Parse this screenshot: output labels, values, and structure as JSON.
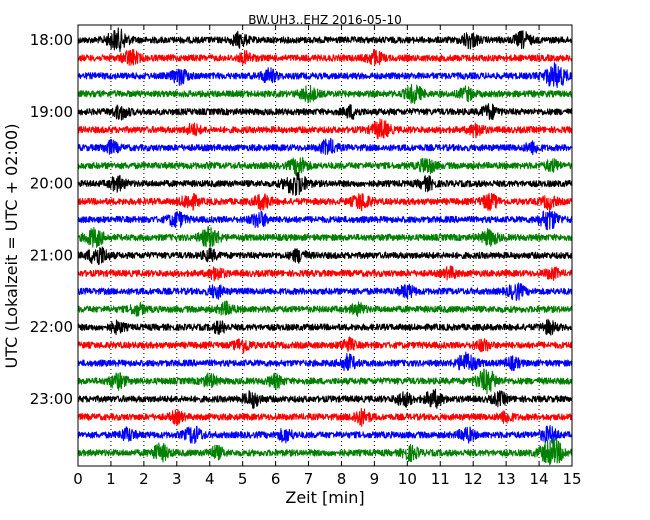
{
  "chart_data": {
    "type": "line",
    "title": "BW.UH3..EHZ 2016-05-10",
    "xlabel": "Zeit  [min]",
    "ylabel": "UTC (Lokalzeit = UTC + 02:00)",
    "xlim": [
      0,
      15
    ],
    "x_ticks": [
      "0",
      "1",
      "2",
      "3",
      "4",
      "5",
      "6",
      "7",
      "8",
      "9",
      "10",
      "11",
      "12",
      "13",
      "14",
      "15"
    ],
    "y_tick_labels": [
      "18:00",
      "19:00",
      "20:00",
      "21:00",
      "22:00",
      "23:00"
    ],
    "grid": "vertical dotted lines at each minute",
    "trace_colors": [
      "#000000",
      "#ff0000",
      "#0000ff",
      "#008000"
    ],
    "rows": [
      {
        "start": "18:00",
        "color": "#000000",
        "bursts": [
          {
            "min": 1.2,
            "amp": 1.4
          },
          {
            "min": 4.9,
            "amp": 0.9
          },
          {
            "min": 11.9,
            "amp": 1.0
          },
          {
            "min": 13.5,
            "amp": 1.0
          }
        ]
      },
      {
        "start": "18:15",
        "color": "#ff0000",
        "bursts": [
          {
            "min": 1.6,
            "amp": 1.0
          },
          {
            "min": 5.1,
            "amp": 0.7
          },
          {
            "min": 9.0,
            "amp": 0.9
          }
        ]
      },
      {
        "start": "18:30",
        "color": "#0000ff",
        "bursts": [
          {
            "min": 3.1,
            "amp": 1.0
          },
          {
            "min": 5.8,
            "amp": 0.9
          },
          {
            "min": 14.5,
            "amp": 1.6
          }
        ]
      },
      {
        "start": "18:45",
        "color": "#008000",
        "bursts": [
          {
            "min": 7.0,
            "amp": 1.0
          },
          {
            "min": 10.2,
            "amp": 1.1
          },
          {
            "min": 11.8,
            "amp": 0.8
          }
        ]
      },
      {
        "start": "19:00",
        "color": "#000000",
        "bursts": [
          {
            "min": 1.3,
            "amp": 0.9
          },
          {
            "min": 8.3,
            "amp": 0.8
          },
          {
            "min": 12.5,
            "amp": 0.9
          }
        ]
      },
      {
        "start": "19:15",
        "color": "#ff0000",
        "bursts": [
          {
            "min": 3.5,
            "amp": 0.7
          },
          {
            "min": 9.2,
            "amp": 1.2
          },
          {
            "min": 12.1,
            "amp": 0.8
          }
        ]
      },
      {
        "start": "19:30",
        "color": "#0000ff",
        "bursts": [
          {
            "min": 1.0,
            "amp": 0.8
          },
          {
            "min": 7.6,
            "amp": 1.0
          },
          {
            "min": 13.8,
            "amp": 0.7
          }
        ]
      },
      {
        "start": "19:45",
        "color": "#008000",
        "bursts": [
          {
            "min": 6.7,
            "amp": 1.1
          },
          {
            "min": 10.6,
            "amp": 1.0
          },
          {
            "min": 14.4,
            "amp": 0.7
          }
        ]
      },
      {
        "start": "20:00",
        "color": "#000000",
        "bursts": [
          {
            "min": 1.2,
            "amp": 0.9
          },
          {
            "min": 6.6,
            "amp": 1.6
          },
          {
            "min": 10.6,
            "amp": 0.8
          }
        ]
      },
      {
        "start": "20:15",
        "color": "#ff0000",
        "bursts": [
          {
            "min": 3.4,
            "amp": 1.0
          },
          {
            "min": 5.6,
            "amp": 1.0
          },
          {
            "min": 8.6,
            "amp": 1.1
          },
          {
            "min": 12.5,
            "amp": 1.0
          },
          {
            "min": 14.3,
            "amp": 0.8
          }
        ]
      },
      {
        "start": "20:30",
        "color": "#0000ff",
        "bursts": [
          {
            "min": 3.0,
            "amp": 1.0
          },
          {
            "min": 5.5,
            "amp": 1.0
          },
          {
            "min": 14.3,
            "amp": 1.3
          }
        ]
      },
      {
        "start": "20:45",
        "color": "#008000",
        "bursts": [
          {
            "min": 0.5,
            "amp": 1.2
          },
          {
            "min": 4.0,
            "amp": 1.3
          },
          {
            "min": 12.5,
            "amp": 1.0
          }
        ]
      },
      {
        "start": "21:00",
        "color": "#000000",
        "bursts": [
          {
            "min": 0.6,
            "amp": 1.3
          },
          {
            "min": 4.0,
            "amp": 0.7
          },
          {
            "min": 6.7,
            "amp": 0.8
          }
        ]
      },
      {
        "start": "21:15",
        "color": "#ff0000",
        "bursts": [
          {
            "min": 4.2,
            "amp": 0.8
          },
          {
            "min": 11.3,
            "amp": 0.7
          },
          {
            "min": 14.4,
            "amp": 0.7
          }
        ]
      },
      {
        "start": "21:30",
        "color": "#0000ff",
        "bursts": [
          {
            "min": 4.2,
            "amp": 0.8
          },
          {
            "min": 10.0,
            "amp": 0.8
          },
          {
            "min": 13.3,
            "amp": 1.0
          }
        ]
      },
      {
        "start": "21:45",
        "color": "#008000",
        "bursts": [
          {
            "min": 1.8,
            "amp": 0.7
          },
          {
            "min": 4.5,
            "amp": 0.8
          },
          {
            "min": 8.5,
            "amp": 0.7
          }
        ]
      },
      {
        "start": "22:00",
        "color": "#000000",
        "bursts": [
          {
            "min": 1.2,
            "amp": 0.7
          },
          {
            "min": 4.3,
            "amp": 0.7
          },
          {
            "min": 14.3,
            "amp": 0.8
          }
        ]
      },
      {
        "start": "22:15",
        "color": "#ff0000",
        "bursts": [
          {
            "min": 5.0,
            "amp": 0.9
          },
          {
            "min": 8.2,
            "amp": 0.8
          },
          {
            "min": 12.3,
            "amp": 0.7
          }
        ]
      },
      {
        "start": "22:30",
        "color": "#0000ff",
        "bursts": [
          {
            "min": 8.2,
            "amp": 1.0
          },
          {
            "min": 11.8,
            "amp": 1.3
          },
          {
            "min": 13.2,
            "amp": 0.7
          }
        ]
      },
      {
        "start": "22:45",
        "color": "#008000",
        "bursts": [
          {
            "min": 1.2,
            "amp": 1.0
          },
          {
            "min": 4.0,
            "amp": 0.8
          },
          {
            "min": 6.0,
            "amp": 0.8
          },
          {
            "min": 12.4,
            "amp": 1.5
          }
        ]
      },
      {
        "start": "23:00",
        "color": "#000000",
        "bursts": [
          {
            "min": 5.3,
            "amp": 1.0
          },
          {
            "min": 9.9,
            "amp": 0.9
          },
          {
            "min": 10.8,
            "amp": 1.1
          },
          {
            "min": 12.8,
            "amp": 0.8
          }
        ]
      },
      {
        "start": "23:15",
        "color": "#ff0000",
        "bursts": [
          {
            "min": 3.0,
            "amp": 0.7
          },
          {
            "min": 8.6,
            "amp": 1.0
          },
          {
            "min": 13.0,
            "amp": 0.7
          }
        ]
      },
      {
        "start": "23:30",
        "color": "#0000ff",
        "bursts": [
          {
            "min": 1.5,
            "amp": 0.8
          },
          {
            "min": 3.5,
            "amp": 1.1
          },
          {
            "min": 6.3,
            "amp": 0.8
          },
          {
            "min": 11.8,
            "amp": 0.9
          },
          {
            "min": 14.3,
            "amp": 1.0
          }
        ]
      },
      {
        "start": "23:45",
        "color": "#008000",
        "bursts": [
          {
            "min": 2.5,
            "amp": 1.1
          },
          {
            "min": 4.2,
            "amp": 0.8
          },
          {
            "min": 10.1,
            "amp": 0.9
          },
          {
            "min": 14.4,
            "amp": 1.8
          }
        ]
      }
    ]
  }
}
